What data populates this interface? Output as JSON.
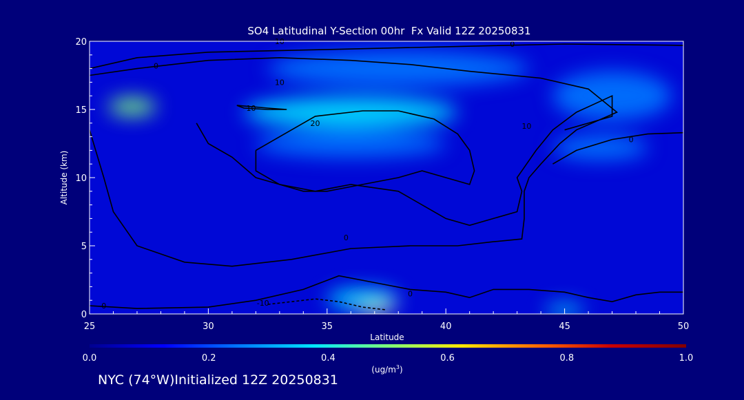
{
  "chart_data": {
    "type": "heatmap",
    "title": "SO4 Latitudinal Y-Section 00hr  Fx Valid 12Z 20250831",
    "xlabel": "Latitude",
    "ylabel": "Altitude (km)",
    "xlim": [
      25,
      50
    ],
    "ylim": [
      0,
      20
    ],
    "x_ticks": [
      "25",
      "30",
      "35",
      "40",
      "45",
      "50"
    ],
    "y_ticks": [
      "0",
      "5",
      "10",
      "15",
      "20"
    ],
    "colorbar": {
      "range": [
        0.0,
        1.0
      ],
      "ticks": [
        "0.0",
        "0.2",
        "0.4",
        "0.6",
        "0.8",
        "1.0"
      ],
      "unit_text": "(ug/m",
      "unit_sup": "3",
      "unit_close": ")",
      "colors": [
        "#00008f",
        "#0000ff",
        "#0077ff",
        "#00e5ff",
        "#7dff7a",
        "#ffe600",
        "#ff6a00",
        "#c80000",
        "#800000"
      ]
    },
    "field_blobs": [
      {
        "lat": 37.0,
        "alt": 0.6,
        "value": 0.62,
        "w": 1.6,
        "h": 0.6
      },
      {
        "lat": 36.5,
        "alt": 1.1,
        "value": 0.38,
        "w": 3.0,
        "h": 0.9
      },
      {
        "lat": 26.8,
        "alt": 15.2,
        "value": 0.55,
        "w": 2.0,
        "h": 0.7
      },
      {
        "lat": 36.0,
        "alt": 14.8,
        "value": 0.33,
        "w": 9.0,
        "h": 1.6
      },
      {
        "lat": 36.0,
        "alt": 12.5,
        "value": 0.28,
        "w": 8.0,
        "h": 1.4
      },
      {
        "lat": 38.0,
        "alt": 18.0,
        "value": 0.25,
        "w": 11.0,
        "h": 2.0
      },
      {
        "lat": 47.0,
        "alt": 16.0,
        "value": 0.22,
        "w": 5.0,
        "h": 3.0
      },
      {
        "lat": 46.5,
        "alt": 12.2,
        "value": 0.22,
        "w": 4.0,
        "h": 1.2
      },
      {
        "lat": 45.0,
        "alt": 0.3,
        "value": 0.42,
        "w": 1.6,
        "h": 0.2
      }
    ],
    "contours": [
      {
        "label": "10",
        "points": [
          [
            31.2,
            15.3
          ],
          [
            31.5,
            15.1
          ],
          [
            32.5,
            15.0
          ],
          [
            33.3,
            15.0
          ],
          [
            32.5,
            15.1
          ],
          [
            31.2,
            15.3
          ]
        ]
      },
      {
        "label": "10",
        "points": [
          [
            25.0,
            17.5
          ],
          [
            27.0,
            18.0
          ],
          [
            30.0,
            18.6
          ],
          [
            33.0,
            18.8
          ],
          [
            36.0,
            18.6
          ],
          [
            38.5,
            18.3
          ],
          [
            41.0,
            17.8
          ],
          [
            44.0,
            17.3
          ],
          [
            46.0,
            16.5
          ],
          [
            47.2,
            14.8
          ],
          [
            45.5,
            13.5
          ],
          [
            44.8,
            12.5
          ],
          [
            44.0,
            11.0
          ],
          [
            43.5,
            10.0
          ],
          [
            43.3,
            9.0
          ],
          [
            43.3,
            7.0
          ],
          [
            43.2,
            5.5
          ],
          [
            42.0,
            5.3
          ],
          [
            40.5,
            5.0
          ],
          [
            38.5,
            5.0
          ],
          [
            36.0,
            4.8
          ],
          [
            33.5,
            4.0
          ],
          [
            31.0,
            3.5
          ],
          [
            29.0,
            3.8
          ],
          [
            27.0,
            5.0
          ],
          [
            26.0,
            7.5
          ],
          [
            25.6,
            10.0
          ],
          [
            25.0,
            13.5
          ]
        ]
      },
      {
        "label": "20",
        "points": [
          [
            32.0,
            12.0
          ],
          [
            33.5,
            13.5
          ],
          [
            34.5,
            14.5
          ],
          [
            36.5,
            14.9
          ],
          [
            38.0,
            14.9
          ],
          [
            39.5,
            14.3
          ],
          [
            40.5,
            13.2
          ],
          [
            41.0,
            12.0
          ],
          [
            41.2,
            10.5
          ],
          [
            41.0,
            9.5
          ],
          [
            40.0,
            10.0
          ],
          [
            39.0,
            10.5
          ],
          [
            38.0,
            10.0
          ],
          [
            36.5,
            9.5
          ],
          [
            35.0,
            9.0
          ],
          [
            34.0,
            9.0
          ],
          [
            33.0,
            9.5
          ],
          [
            32.0,
            10.5
          ],
          [
            32.0,
            12.0
          ]
        ]
      },
      {
        "label": "10",
        "points": [
          [
            29.5,
            14.0
          ],
          [
            30.0,
            12.5
          ],
          [
            31.0,
            11.5
          ],
          [
            32.0,
            10.0
          ],
          [
            33.0,
            9.5
          ],
          [
            34.5,
            9.0
          ],
          [
            36.0,
            9.5
          ],
          [
            38.0,
            9.0
          ],
          [
            40.0,
            7.0
          ],
          [
            41.0,
            6.5
          ],
          [
            43.0,
            7.5
          ],
          [
            43.2,
            9.0
          ],
          [
            43.0,
            10.0
          ],
          [
            43.8,
            12.0
          ],
          [
            44.5,
            13.5
          ],
          [
            45.5,
            14.8
          ],
          [
            47.0,
            16.0
          ],
          [
            47.0,
            14.5
          ],
          [
            45.0,
            13.5
          ]
        ]
      },
      {
        "label": "0",
        "points": [
          [
            25.0,
            18.0
          ],
          [
            27.0,
            18.8
          ],
          [
            30.0,
            19.2
          ],
          [
            35.0,
            19.4
          ],
          [
            40.0,
            19.6
          ],
          [
            45.0,
            19.8
          ],
          [
            50.0,
            19.7
          ]
        ]
      },
      {
        "label": "0",
        "points": [
          [
            25.0,
            0.6
          ],
          [
            27.0,
            0.4
          ],
          [
            30.0,
            0.5
          ],
          [
            32.0,
            1.0
          ],
          [
            34.0,
            1.8
          ],
          [
            35.5,
            2.8
          ],
          [
            37.0,
            2.3
          ],
          [
            38.5,
            1.8
          ],
          [
            40.0,
            1.6
          ],
          [
            41.0,
            1.2
          ],
          [
            42.0,
            1.8
          ],
          [
            43.5,
            1.8
          ],
          [
            45.0,
            1.6
          ],
          [
            46.0,
            1.2
          ],
          [
            47.0,
            0.9
          ],
          [
            48.0,
            1.4
          ],
          [
            49.0,
            1.6
          ],
          [
            50.0,
            1.6
          ]
        ]
      },
      {
        "label": "0",
        "points": [
          [
            44.5,
            11.0
          ],
          [
            45.5,
            12.0
          ],
          [
            47.0,
            12.8
          ],
          [
            48.5,
            13.2
          ],
          [
            50.0,
            13.3
          ]
        ]
      },
      {
        "label": "-10",
        "points": [
          [
            32.5,
            0.7
          ],
          [
            33.5,
            0.9
          ],
          [
            34.5,
            1.1
          ],
          [
            35.5,
            0.9
          ],
          [
            36.5,
            0.5
          ],
          [
            37.5,
            0.3
          ]
        ]
      }
    ],
    "contour_labels": [
      {
        "text": "10",
        "lat": 31.8,
        "alt": 15.1
      },
      {
        "text": "10",
        "lat": 33.0,
        "alt": 17.0
      },
      {
        "text": "20",
        "lat": 34.5,
        "alt": 14.0
      },
      {
        "text": "10",
        "lat": 43.4,
        "alt": 13.8
      },
      {
        "text": "0",
        "lat": 27.8,
        "alt": 18.2
      },
      {
        "text": "0",
        "lat": 42.8,
        "alt": 19.8
      },
      {
        "text": "0",
        "lat": 47.8,
        "alt": 12.8
      },
      {
        "text": "0",
        "lat": 35.8,
        "alt": 5.6
      },
      {
        "text": "0",
        "lat": 38.5,
        "alt": 1.5
      },
      {
        "text": "-10",
        "lat": 32.3,
        "alt": 0.8
      },
      {
        "text": "0",
        "lat": 25.6,
        "alt": 0.6
      },
      {
        "text": "10",
        "lat": 33.0,
        "alt": 20.0
      }
    ]
  },
  "footer": {
    "location": "NYC (74°W)",
    "initialized": "Initialized 12Z 20250831"
  }
}
